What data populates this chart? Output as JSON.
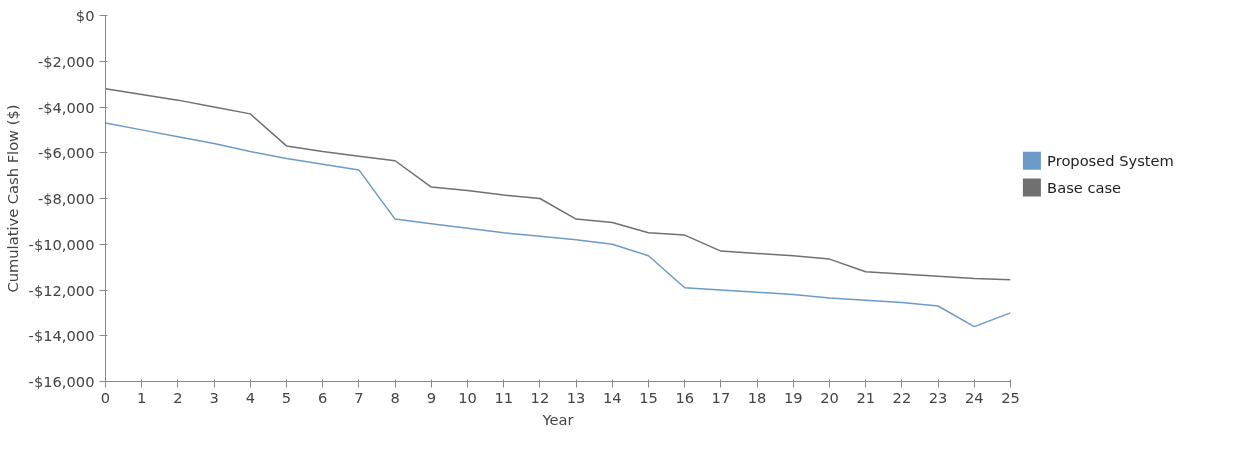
{
  "chart_data": {
    "type": "line",
    "xlabel": "Year",
    "ylabel": "Cumulative Cash Flow ($)",
    "x": [
      0,
      1,
      2,
      3,
      4,
      5,
      6,
      7,
      8,
      9,
      10,
      11,
      12,
      13,
      14,
      15,
      16,
      17,
      18,
      19,
      20,
      21,
      22,
      23,
      24,
      25
    ],
    "series": [
      {
        "name": "Proposed System",
        "color": "#6b9bc8",
        "values": [
          -4700,
          -5000,
          -5300,
          -5600,
          -5950,
          -6250,
          -6500,
          -6750,
          -8900,
          -9100,
          -9300,
          -9500,
          -9650,
          -9800,
          -10000,
          -10500,
          -11900,
          -12000,
          -12100,
          -12200,
          -12350,
          -12450,
          -12550,
          -12700,
          -13600,
          -13000
        ]
      },
      {
        "name": "Base case",
        "color": "#707070",
        "values": [
          -3200,
          -3450,
          -3700,
          -4000,
          -4300,
          -5700,
          -5950,
          -6150,
          -6350,
          -7500,
          -7650,
          -7850,
          -8000,
          -8900,
          -9050,
          -9500,
          -9600,
          -10300,
          -10400,
          -10500,
          -10650,
          -11200,
          -11300,
          -11400,
          -11500,
          -11550
        ]
      }
    ],
    "xlim": [
      0,
      25
    ],
    "xticks": [
      0,
      1,
      2,
      3,
      4,
      5,
      6,
      7,
      8,
      9,
      10,
      11,
      12,
      13,
      14,
      15,
      16,
      17,
      18,
      19,
      20,
      21,
      22,
      23,
      24,
      25
    ],
    "ylim": [
      -16000,
      0
    ],
    "yticks": [
      {
        "value": 0,
        "label": "$0"
      },
      {
        "value": -2000,
        "label": "-$2,000"
      },
      {
        "value": -4000,
        "label": "-$4,000"
      },
      {
        "value": -6000,
        "label": "-$6,000"
      },
      {
        "value": -8000,
        "label": "-$8,000"
      },
      {
        "value": -10000,
        "label": "-$10,000"
      },
      {
        "value": -12000,
        "label": "-$12,000"
      },
      {
        "value": -14000,
        "label": "-$14,000"
      },
      {
        "value": -16000,
        "label": "-$16,000"
      }
    ],
    "grid": false,
    "legend": "right",
    "marker": "none",
    "line_style": "solid"
  }
}
